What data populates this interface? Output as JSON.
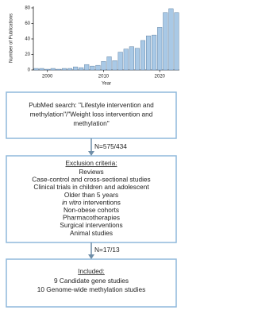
{
  "chart_data": {
    "type": "bar",
    "x_label": "Year",
    "y_label": "Number of Publications",
    "x": [
      1998,
      1999,
      2000,
      2001,
      2002,
      2003,
      2004,
      2005,
      2006,
      2007,
      2008,
      2009,
      2010,
      2011,
      2012,
      2013,
      2014,
      2015,
      2016,
      2017,
      2018,
      2019,
      2020,
      2021,
      2022,
      2023
    ],
    "values": [
      2,
      2,
      1,
      2,
      1,
      2,
      2,
      4,
      3,
      7,
      5,
      6,
      11,
      17,
      12,
      23,
      27,
      30,
      28,
      38,
      44,
      45,
      55,
      74,
      79,
      74
    ],
    "color": "#a9c9e6",
    "edge_color": "#4a6f94",
    "xlim": [
      1997.5,
      2023.5
    ],
    "xticks": [
      2000,
      2010,
      2020
    ],
    "ylim": [
      0,
      82
    ],
    "yticks": [
      0,
      20,
      40,
      60,
      80
    ]
  },
  "flow": {
    "search": {
      "lines": [
        "PubMed search: \"Lifestyle intervention and",
        "methylation\"/\"Weight loss intervention and",
        "methylation\""
      ]
    },
    "arrow1": "N=575/434",
    "exclusion": {
      "title": "Exclusion criteria:",
      "items": [
        {
          "text": "Reviews"
        },
        {
          "text": "Case-control and cross-sectional studies"
        },
        {
          "text": "Clinical trials in children and adolescent"
        },
        {
          "text": "Older than 5 years"
        },
        {
          "em": "in vitro",
          "text": "interventions"
        },
        {
          "text": "Non-obese cohorts"
        },
        {
          "text": "Pharmacotherapies"
        },
        {
          "text": "Surgical interventions"
        },
        {
          "text": "Animal studies"
        }
      ]
    },
    "arrow2": "N=17/13",
    "included": {
      "title": "Included:",
      "lines": [
        "9 Candidate gene studies",
        "10 Genome-wide methylation studies"
      ]
    }
  }
}
